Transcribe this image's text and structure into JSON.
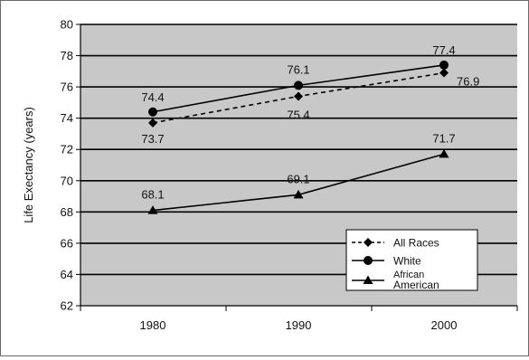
{
  "chart_data": {
    "type": "line",
    "title": "",
    "xlabel": "",
    "ylabel": "Life Exectancy (years)",
    "x": [
      "1980",
      "1990",
      "2000"
    ],
    "ylim": [
      62,
      80
    ],
    "yticks": [
      62,
      64,
      66,
      68,
      70,
      72,
      74,
      76,
      78,
      80
    ],
    "grid": true,
    "legend_position": "bottom-right",
    "plot_background": "#c8c8c8",
    "series": [
      {
        "name": "All Races",
        "values": [
          73.7,
          75.4,
          76.9
        ],
        "labels": [
          "73.7",
          "75.4",
          "76.9"
        ],
        "line_style": "dashed",
        "marker": "diamond"
      },
      {
        "name": "White",
        "values": [
          74.4,
          76.1,
          77.4
        ],
        "labels": [
          "74.4",
          "76.1",
          "77.4"
        ],
        "line_style": "solid",
        "marker": "circle"
      },
      {
        "name": "African American",
        "name_lines": [
          "African",
          "American"
        ],
        "values": [
          68.1,
          69.1,
          71.7
        ],
        "labels": [
          "68.1",
          "69.1",
          "71.7"
        ],
        "line_style": "solid",
        "marker": "triangle"
      }
    ]
  }
}
